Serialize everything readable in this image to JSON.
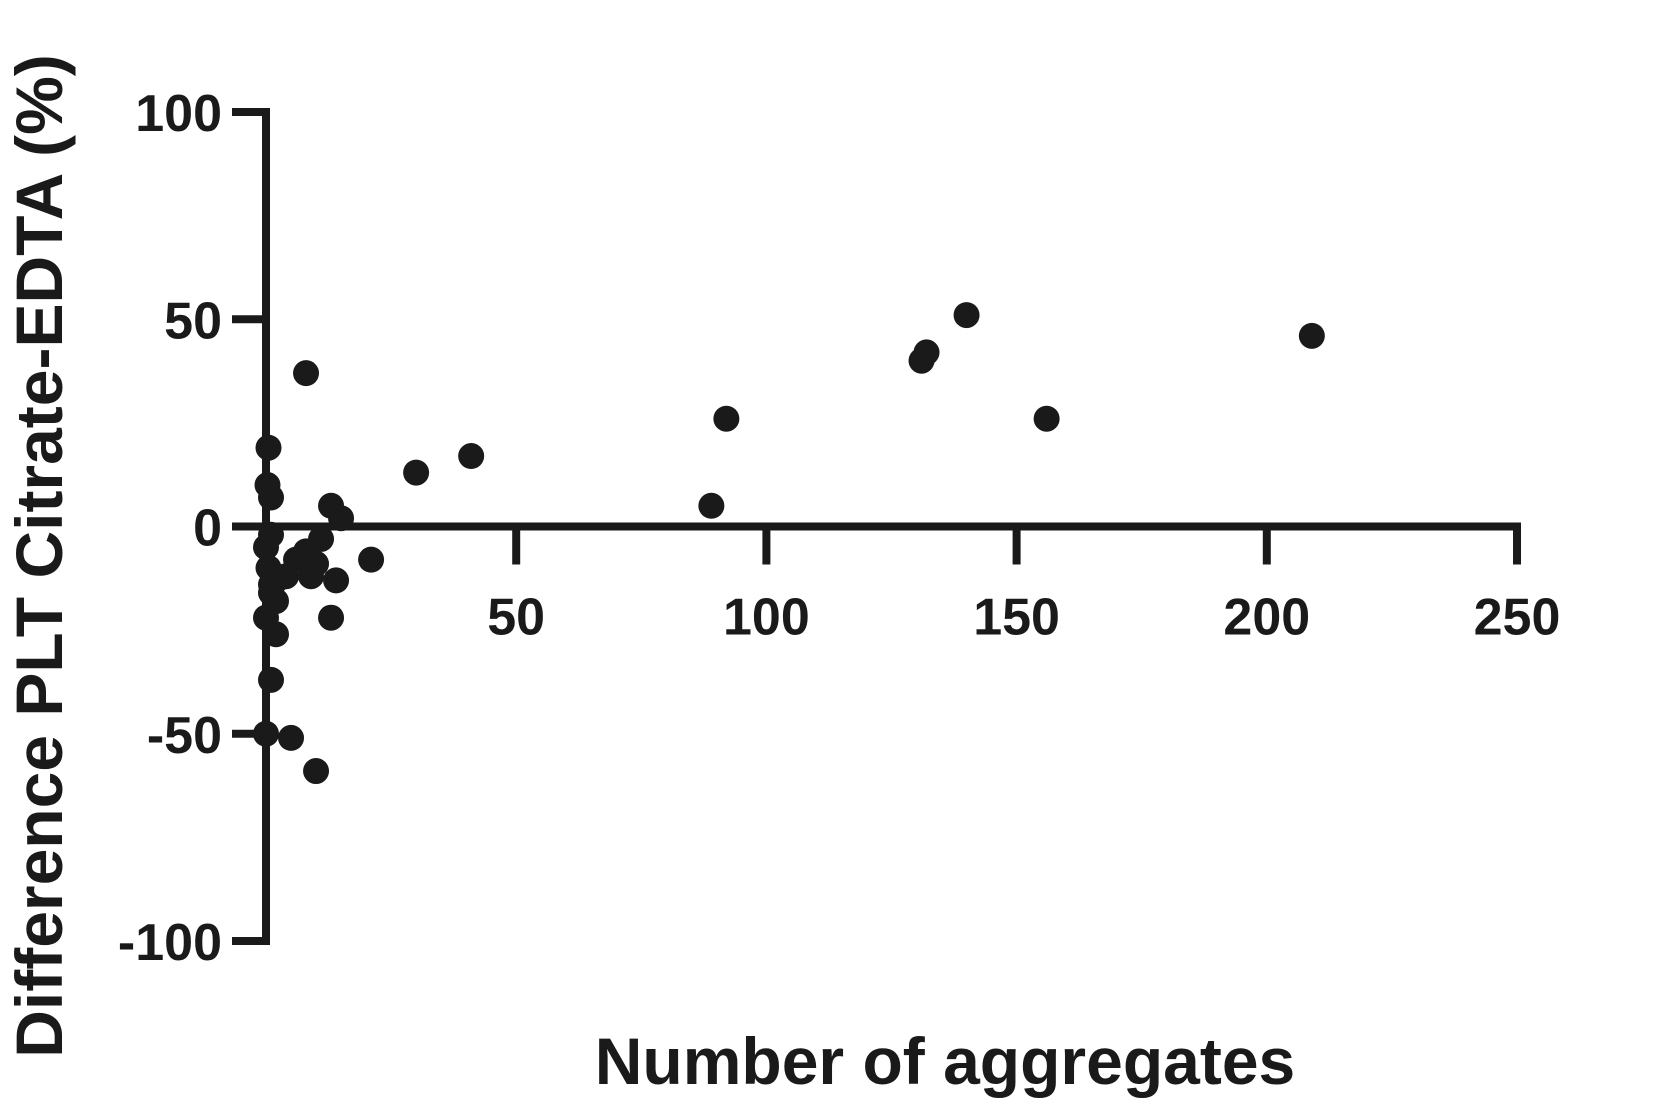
{
  "chart_data": {
    "type": "scatter",
    "title": "",
    "xlabel": "Number of aggregates",
    "ylabel": "Difference PLT Citrate-EDTA (%)",
    "xlim": [
      0,
      250
    ],
    "ylim": [
      -100,
      100
    ],
    "x_ticks": [
      50,
      100,
      150,
      200,
      250
    ],
    "y_ticks": [
      -100,
      -50,
      0,
      50,
      100
    ],
    "grid": false,
    "legend": "none",
    "marker_color": "#1a1a1a",
    "series": [
      {
        "points": [
          [
            8,
            37
          ],
          [
            0.5,
            19
          ],
          [
            0.3,
            10
          ],
          [
            1,
            7
          ],
          [
            1,
            -2
          ],
          [
            0,
            -5
          ],
          [
            0.5,
            -10
          ],
          [
            1,
            -14
          ],
          [
            2,
            -13
          ],
          [
            1,
            -16
          ],
          [
            2,
            -18
          ],
          [
            0,
            -22
          ],
          [
            2,
            -26
          ],
          [
            1,
            -37
          ],
          [
            0,
            -50
          ],
          [
            5,
            -51
          ],
          [
            10,
            -59
          ],
          [
            4,
            -12
          ],
          [
            6,
            -8
          ],
          [
            8,
            -6
          ],
          [
            10,
            -9
          ],
          [
            11,
            -3
          ],
          [
            9,
            -12
          ],
          [
            13,
            5
          ],
          [
            15,
            2
          ],
          [
            14,
            -13
          ],
          [
            13,
            -22
          ],
          [
            21,
            -8
          ],
          [
            30,
            13
          ],
          [
            41,
            17
          ],
          [
            89,
            5
          ],
          [
            92,
            26
          ],
          [
            131,
            40
          ],
          [
            132,
            42
          ],
          [
            140,
            51
          ],
          [
            156,
            26
          ],
          [
            209,
            46
          ]
        ]
      }
    ]
  }
}
